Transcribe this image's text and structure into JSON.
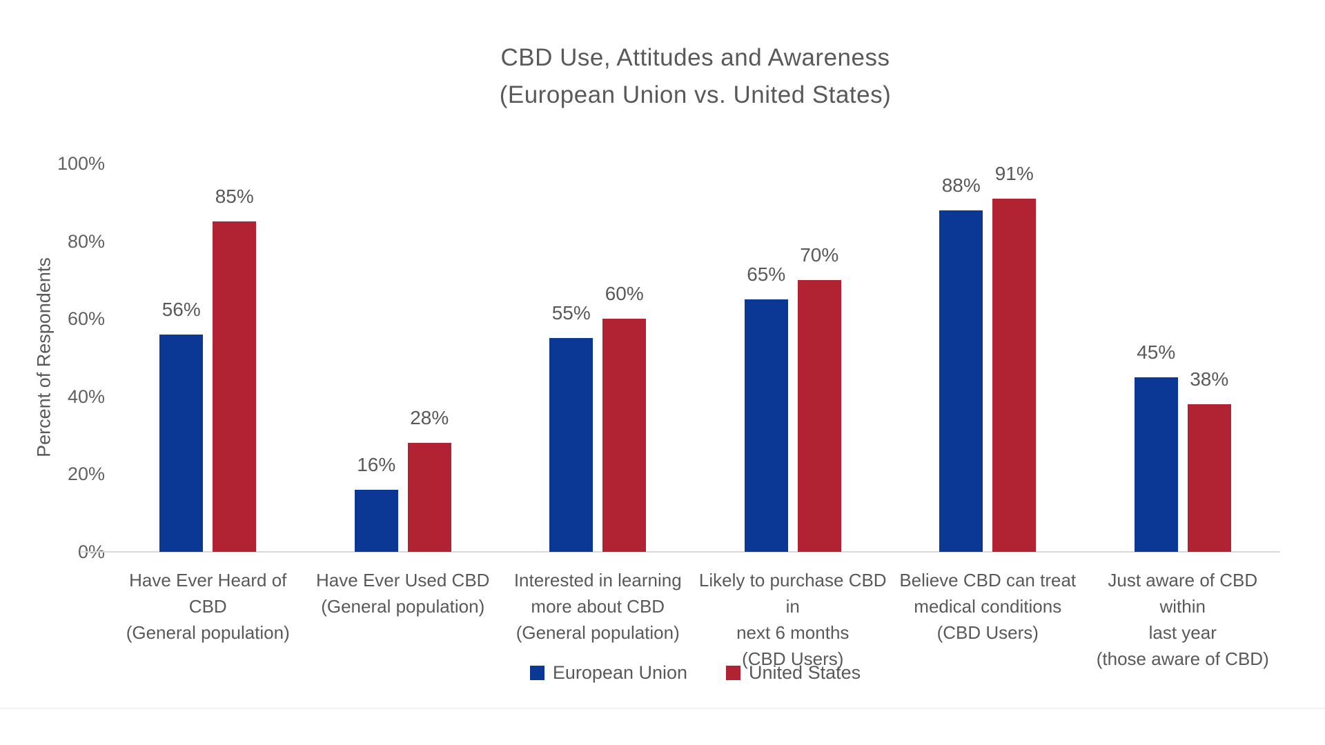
{
  "chart_data": {
    "type": "bar",
    "title": "CBD Use, Attitudes and Awareness",
    "subtitle": "(European Union vs. United States)",
    "ylabel": "Percent of Respondents",
    "ylim": [
      0,
      100
    ],
    "yticks": [
      0,
      20,
      40,
      60,
      80,
      100
    ],
    "ytick_suffix": "%",
    "grid": false,
    "legend_position": "bottom",
    "data_label_suffix": "%",
    "categories": [
      "Have Ever Heard of CBD (General population)",
      "Have Ever Used CBD (General population)",
      "Interested in learning more about CBD (General population)",
      "Likely to purchase CBD in next 6 months (CBD Users)",
      "Believe CBD can treat medical conditions (CBD Users)",
      "Just aware of CBD within last year (those aware of CBD)"
    ],
    "categories_lines": [
      [
        "Have Ever Heard of CBD",
        "(General population)"
      ],
      [
        "Have Ever Used CBD",
        "(General population)"
      ],
      [
        "Interested in learning",
        "more about CBD",
        "(General population)"
      ],
      [
        "Likely to purchase CBD in",
        "next 6 months",
        "(CBD Users)"
      ],
      [
        "Believe CBD can treat",
        "medical conditions",
        "(CBD Users)"
      ],
      [
        "Just aware of CBD within",
        "last year",
        "(those aware of CBD)"
      ]
    ],
    "series": [
      {
        "name": "European Union",
        "color": "#0b3795",
        "values": [
          56,
          16,
          55,
          65,
          88,
          45
        ]
      },
      {
        "name": "United States",
        "color": "#b12233",
        "values": [
          85,
          28,
          60,
          70,
          91,
          38
        ]
      }
    ],
    "colors": {
      "axis_line": "#d8d8d8",
      "text": "#595959"
    }
  }
}
